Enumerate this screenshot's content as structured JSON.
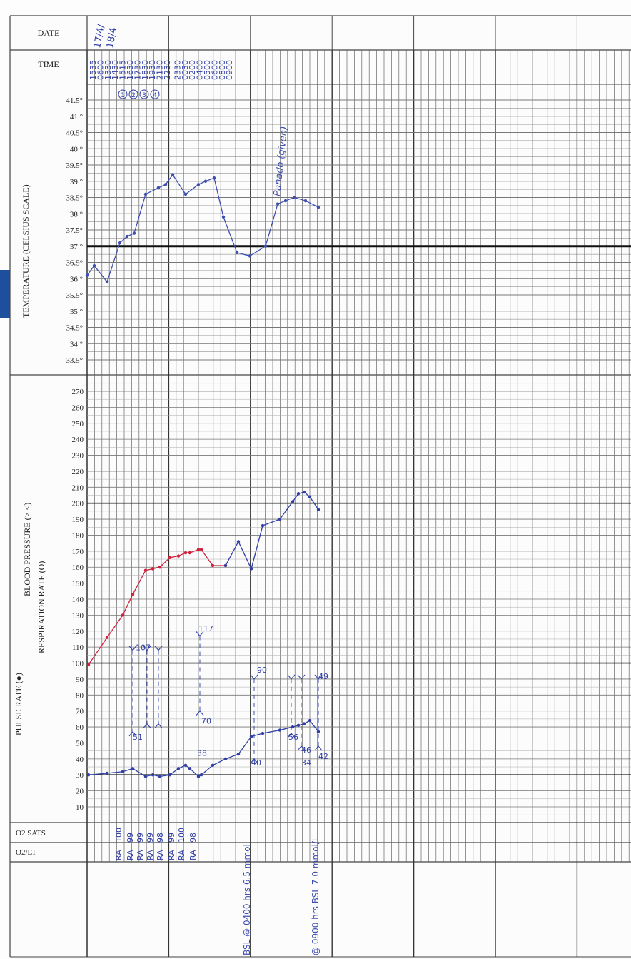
{
  "header": {
    "date_label": "DATE",
    "time_label": "TIME",
    "date_entries": [
      "17/4/",
      "18/4"
    ]
  },
  "times": [
    "1535",
    "0600",
    "1330",
    "1430",
    "1515",
    "1630",
    "1730",
    "1830",
    "1930",
    "2130",
    "2230",
    "2330",
    "0030",
    "0200",
    "0400",
    "0500",
    "0600",
    "0800",
    "0900"
  ],
  "shift_marks": [
    "1",
    "2",
    "3",
    "4"
  ],
  "temperature": {
    "axis_label": "TEMPERATURE (CELSIUS SCALE)",
    "ticks": [
      "41.5°",
      "41 °",
      "40.5°",
      "40 °",
      "39.5°",
      "39 °",
      "38.5°",
      "38 °",
      "37.5°",
      "37 °",
      "36.5°",
      "36 °",
      "35.5°",
      "35 °",
      "34.5°",
      "34 °",
      "33.5°"
    ],
    "note": "Panado (given)",
    "color": "#3f4fb0"
  },
  "vitals": {
    "pulse_label": "PULSE RATE (●)",
    "bp_label": "BLOOD PRESSURE (> <)",
    "resp_label": "RESPIRATION RATE (O)",
    "ticks": [
      "270",
      "260",
      "250",
      "240",
      "230",
      "220",
      "210",
      "200",
      "190",
      "180",
      "170",
      "160",
      "150",
      "140",
      "130",
      "120",
      "110",
      "100",
      "90",
      "80",
      "70",
      "60",
      "50",
      "40",
      "30",
      "20",
      "10"
    ],
    "pulse_color": "#d0203c",
    "bp_color": "#2f3fa6",
    "bp_annotations": [
      "107",
      "117",
      "70",
      "51",
      "56",
      "90",
      "40",
      "38",
      "46",
      "42",
      "34",
      "49"
    ],
    "colors": {
      "pulse_label": "#d0203c",
      "bp_label": "#1aa58a",
      "temp_label": "#2aa0b8"
    }
  },
  "o2": {
    "sats_label": "O2 SATS",
    "lt_label": "O2/LT",
    "sats_values": [
      "100",
      "99",
      "99",
      "99",
      "98",
      "99",
      "100",
      "98"
    ],
    "lt_values": [
      "RA",
      "RA",
      "RA",
      "RA",
      "RA",
      "RA",
      "RA",
      "RA"
    ]
  },
  "notes": {
    "bsl_1": "BSL @ 0400 hrs 6.5 mmol",
    "bsl_2": "@ 0900 hrs BSL 7.0 mmol/l"
  },
  "chart_data": [
    {
      "type": "line",
      "title": "",
      "ylabel": "TEMPERATURE (CELSIUS SCALE)",
      "ylim": [
        33.5,
        41.5
      ],
      "x": [
        1,
        2,
        3,
        4,
        5,
        6,
        7,
        8,
        9,
        10,
        11,
        12,
        13,
        14,
        15,
        16,
        17,
        18,
        19,
        20,
        21,
        22,
        23
      ],
      "series": [
        {
          "values": [
            36.1,
            36.4,
            35.9,
            37.1,
            37.3,
            37.4,
            38.6,
            38.8,
            38.9,
            39.2,
            38.6,
            38.9,
            39.0,
            39.1,
            37.9,
            36.8,
            36.7,
            37.0,
            38.3,
            38.4,
            38.5,
            38.4,
            38.2
          ]
        }
      ]
    },
    {
      "type": "line",
      "title": "",
      "ylabel": "PULSE RATE / BLOOD PRESSURE / RESPIRATION RATE",
      "ylim": [
        0,
        270
      ],
      "series": [
        {
          "name": "PULSE RATE",
          "x": [
            0,
            1,
            2,
            3,
            4,
            5,
            6,
            7,
            8,
            9,
            10,
            11,
            12,
            13,
            14
          ],
          "values": [
            99,
            116,
            130,
            143,
            158,
            159,
            160,
            166,
            167,
            169,
            169,
            171,
            171,
            161,
            161
          ]
        },
        {
          "name": "BLOOD PRESSURE",
          "x": [
            14,
            15,
            16,
            17,
            18,
            19,
            20,
            21,
            22,
            23
          ],
          "values": [
            161,
            176,
            159,
            186,
            190,
            201,
            206,
            207,
            204,
            196
          ]
        },
        {
          "name": "RESPIRATION RATE",
          "x": [
            0,
            1,
            2,
            3,
            4,
            5,
            6,
            7,
            8,
            9,
            10,
            11,
            12,
            13,
            14,
            15,
            16,
            17,
            18,
            19,
            20,
            21,
            22,
            23
          ],
          "values": [
            30,
            31,
            32,
            34,
            29,
            30,
            29,
            30,
            34,
            36,
            34,
            29,
            30,
            36,
            40,
            43,
            54,
            56,
            58,
            60,
            61,
            62,
            64,
            57
          ]
        }
      ]
    }
  ]
}
